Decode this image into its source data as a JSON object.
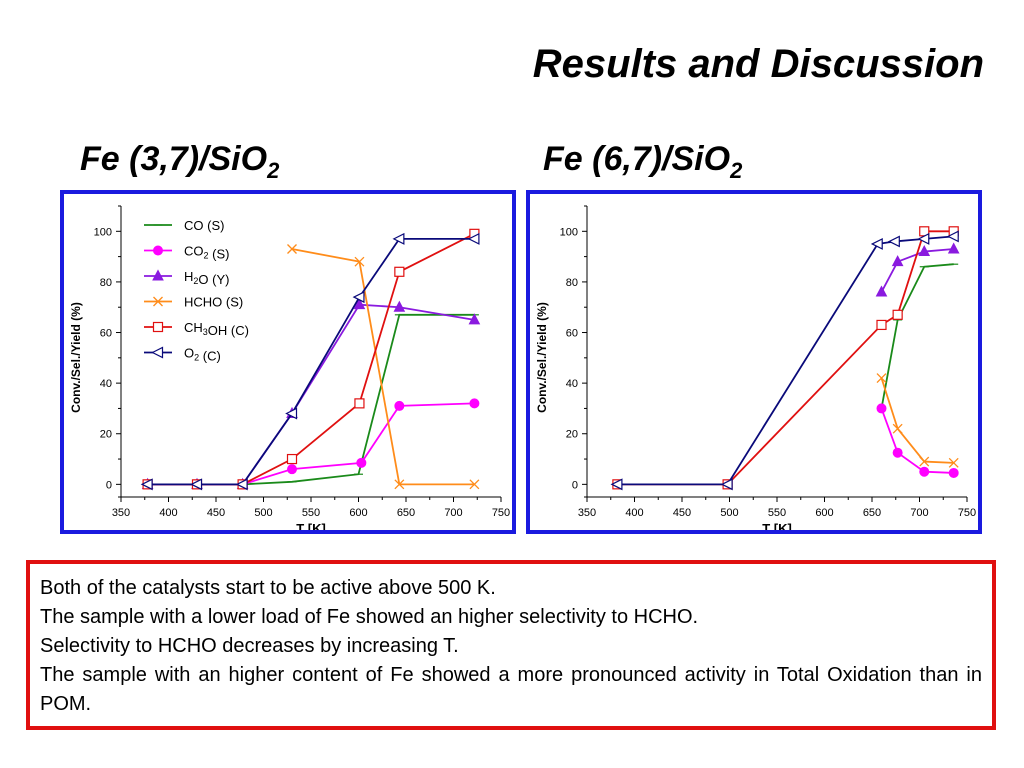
{
  "page": {
    "title": "Results and Discussion",
    "left_heading": {
      "text": "Fe (3,7)/SiO",
      "sub": "2"
    },
    "right_heading": {
      "text": "Fe (6,7)/SiO",
      "sub": "2"
    },
    "notes": [
      "Both of the catalysts start to be active above 500 K.",
      "The sample with a lower load of Fe showed an higher selectivity to HCHO.",
      "Selectivity to HCHO decreases by increasing T.",
      "The sample with an higher content of Fe showed a more pronounced activity in Total Oxidation than in POM."
    ]
  },
  "chart_data": [
    {
      "type": "line",
      "title": "Fe (3,7)/SiO2",
      "xlabel": "T [K]",
      "ylabel": "Conv./Sel./Yield (%)",
      "xlim": [
        350,
        750
      ],
      "ylim": [
        -5,
        110
      ],
      "xticks": [
        350,
        400,
        450,
        500,
        550,
        600,
        650,
        700,
        750
      ],
      "yticks": [
        0,
        20,
        40,
        60,
        80,
        100
      ],
      "legend_position": "top-left",
      "series": [
        {
          "name": "CO (S)",
          "label_parts": [
            [
              "CO",
              ""
            ],
            [
              " (S)",
              ""
            ]
          ],
          "marker": "dash",
          "color": "#1a8a1a",
          "points": [
            [
              378,
              0
            ],
            [
              430,
              0
            ],
            [
              478,
              0
            ],
            [
              530,
              1
            ],
            [
              600,
              4
            ],
            [
              643,
              67
            ],
            [
              722,
              67
            ]
          ]
        },
        {
          "name": "CO2 (S)",
          "label_parts": [
            [
              "CO",
              "2"
            ],
            [
              " (S)",
              ""
            ]
          ],
          "marker": "circle",
          "color": "#ff00ff",
          "points": [
            [
              378,
              0
            ],
            [
              430,
              0
            ],
            [
              478,
              0
            ],
            [
              530,
              6
            ],
            [
              603,
              8.5
            ],
            [
              643,
              31
            ],
            [
              722,
              32
            ]
          ]
        },
        {
          "name": "H2O (Y)",
          "label_parts": [
            [
              "H",
              "2"
            ],
            [
              "O (Y)",
              ""
            ]
          ],
          "marker": "triangle",
          "color": "#8a1adf",
          "points": [
            [
              378,
              0
            ],
            [
              430,
              0
            ],
            [
              478,
              0
            ],
            [
              530,
              28
            ],
            [
              601,
              71
            ],
            [
              643,
              70
            ],
            [
              722,
              65
            ]
          ]
        },
        {
          "name": "HCHO (S)",
          "label_parts": [
            [
              "HCHO (S)",
              ""
            ]
          ],
          "marker": "x",
          "color": "#ff8c1a",
          "points": [
            [
              530,
              93
            ],
            [
              601,
              88
            ],
            [
              643,
              0
            ],
            [
              722,
              0
            ]
          ]
        },
        {
          "name": "CH3OH (C)",
          "label_parts": [
            [
              "CH",
              "3"
            ],
            [
              "OH (C)",
              ""
            ]
          ],
          "marker": "square",
          "color": "#e01010",
          "points": [
            [
              378,
              0
            ],
            [
              430,
              0
            ],
            [
              478,
              0
            ],
            [
              530,
              10
            ],
            [
              601,
              32
            ],
            [
              643,
              84
            ],
            [
              722,
              99
            ]
          ]
        },
        {
          "name": "O2 (C)",
          "label_parts": [
            [
              "O",
              "2"
            ],
            [
              " (C)",
              ""
            ]
          ],
          "marker": "triangle-left",
          "color": "#0a0a7a",
          "points": [
            [
              378,
              0
            ],
            [
              430,
              0
            ],
            [
              478,
              0
            ],
            [
              530,
              28
            ],
            [
              601,
              74
            ],
            [
              643,
              97
            ],
            [
              722,
              97
            ]
          ]
        }
      ]
    },
    {
      "type": "line",
      "title": "Fe (6,7)/SiO2",
      "xlabel": "T [K]",
      "ylabel": "Conv./Sel./Yield (%)",
      "xlim": [
        350,
        750
      ],
      "ylim": [
        -5,
        110
      ],
      "xticks": [
        350,
        400,
        450,
        500,
        550,
        600,
        650,
        700,
        750
      ],
      "yticks": [
        0,
        20,
        40,
        60,
        80,
        100
      ],
      "series": [
        {
          "name": "CO (S)",
          "marker": "dash",
          "color": "#1a8a1a",
          "points": [
            [
              660,
              30
            ],
            [
              677,
              65
            ],
            [
              705,
              86
            ],
            [
              736,
              87
            ]
          ]
        },
        {
          "name": "CO2 (S)",
          "marker": "circle",
          "color": "#ff00ff",
          "points": [
            [
              660,
              30
            ],
            [
              677,
              12.5
            ],
            [
              705,
              5
            ],
            [
              736,
              4.5
            ]
          ]
        },
        {
          "name": "H2O (Y)",
          "marker": "triangle",
          "color": "#8a1adf",
          "points": [
            [
              660,
              76
            ],
            [
              677,
              88
            ],
            [
              705,
              92
            ],
            [
              736,
              93
            ]
          ]
        },
        {
          "name": "HCHO (S)",
          "marker": "x",
          "color": "#ff8c1a",
          "points": [
            [
              660,
              42
            ],
            [
              677,
              22
            ],
            [
              705,
              9
            ],
            [
              736,
              8.5
            ]
          ]
        },
        {
          "name": "CH3OH (C)",
          "marker": "square",
          "color": "#e01010",
          "points": [
            [
              382,
              0
            ],
            [
              498,
              0
            ],
            [
              660,
              63
            ],
            [
              677,
              67
            ],
            [
              705,
              100
            ],
            [
              736,
              100
            ]
          ]
        },
        {
          "name": "O2 (C)",
          "marker": "triangle-left",
          "color": "#0a0a7a",
          "points": [
            [
              382,
              0
            ],
            [
              498,
              0
            ],
            [
              656,
              95
            ],
            [
              674,
              96
            ],
            [
              705,
              97
            ],
            [
              736,
              98
            ]
          ]
        }
      ]
    }
  ]
}
